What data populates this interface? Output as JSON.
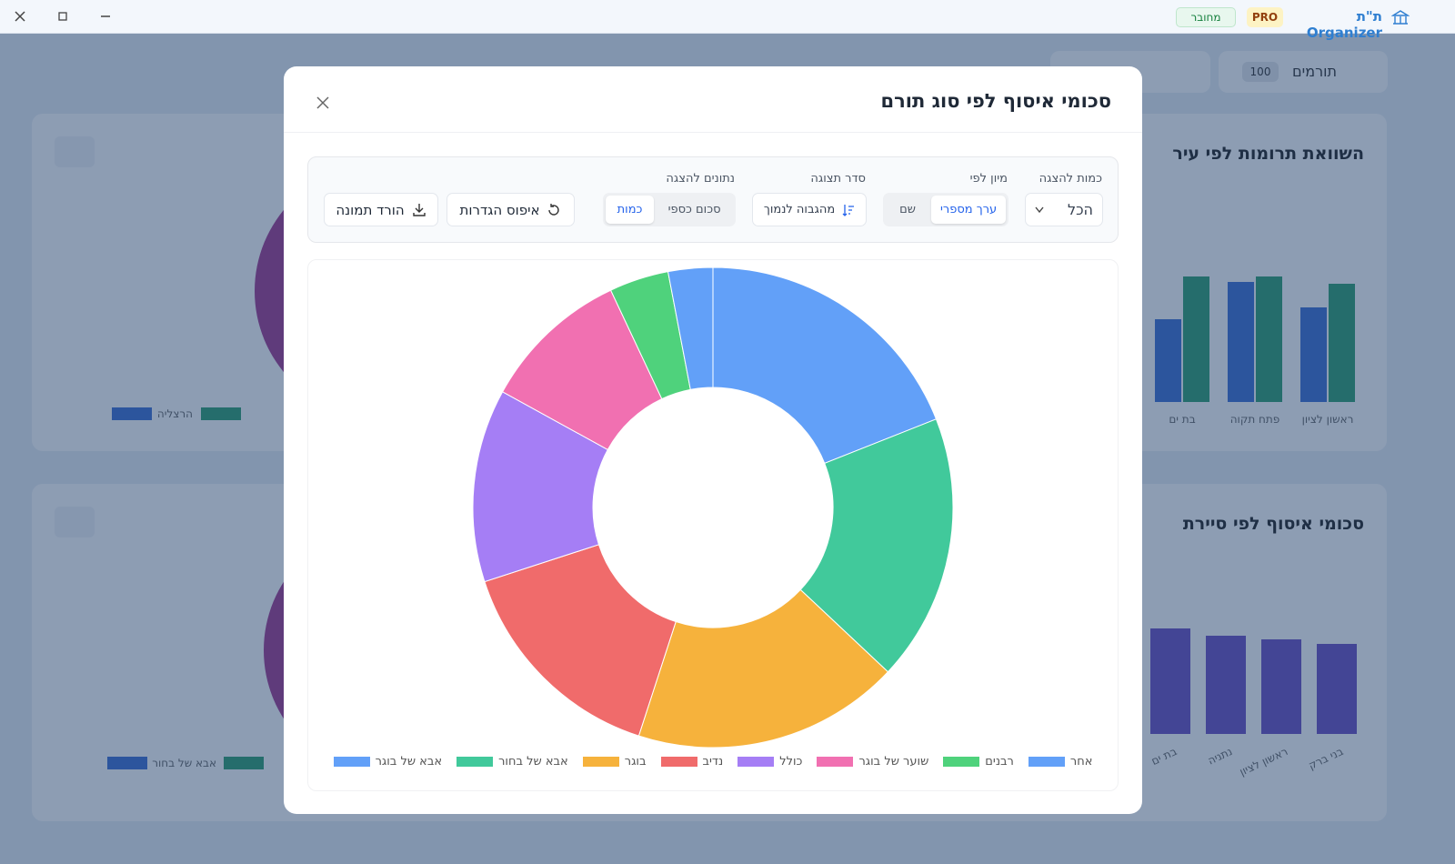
{
  "ui": {
    "titlebar": {
      "app_name": "ת\"ת Organizer",
      "badge": "PRO",
      "status": "מחובר"
    },
    "background": {
      "tab_label": "תורמים",
      "tab_count": 100,
      "legend_labels": [
        "הרצליה",
        "אבא של בחור"
      ]
    },
    "modal": {
      "title": "סכומי איסוף לפי סוג תורם",
      "controls": {
        "limit_label": "כמות להצגה",
        "limit_value": "הכל",
        "sort_label": "מיון לפי",
        "sort_options": [
          "ערך מספרי",
          "שם"
        ],
        "order_label": "סדר תצוגה",
        "order_value": "מהגבוה לנמוך",
        "data_label": "נתונים להצגה",
        "data_options": [
          "סכום כספי",
          "כמות"
        ],
        "reset": "איפוס הגדרות",
        "download": "הורד תמונה"
      }
    }
  },
  "chart_data": [
    {
      "type": "donut",
      "categories": [
        "אבא של בוגר",
        "אבא של בחור",
        "בוגר",
        "נדיב",
        "כולל",
        "שוער של בוגר",
        "רבנים",
        "אחר"
      ],
      "values": [
        19,
        18,
        18,
        15,
        13,
        10,
        4,
        3
      ],
      "colors": [
        "#62a0f8",
        "#41c99b",
        "#f6b23c",
        "#f06b6b",
        "#a57ef5",
        "#f170b1",
        "#4fd27c",
        "#62a0f8"
      ]
    },
    {
      "type": "bar",
      "title": "השוואת תרומות לפי עיר",
      "categories": [
        "בת ים",
        "פתח תקוה",
        "ראשון לציון"
      ],
      "series": [
        {
          "color": "#3d6fd3",
          "values": [
            91,
            132,
            104
          ]
        },
        {
          "color": "#2f9f70",
          "values": [
            138,
            138,
            130
          ]
        }
      ]
    },
    {
      "type": "bar",
      "title": "סכומי איסוף לפי סיירת",
      "categories": [
        "בת ים",
        "נתניה",
        "ראשון לציון",
        "בני ברק"
      ],
      "color": "#6a4fc3",
      "values": [
        116,
        108,
        104,
        99
      ]
    }
  ]
}
